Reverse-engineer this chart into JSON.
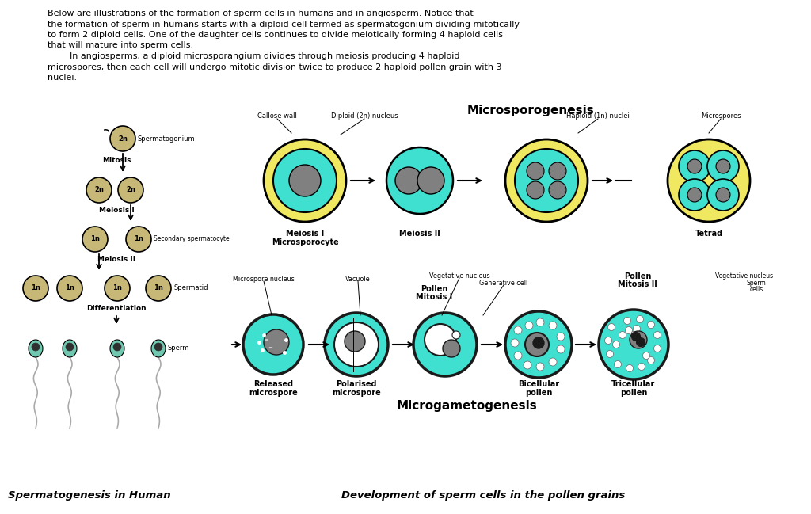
{
  "bg_color": "#ffffff",
  "tan": "#c8b878",
  "teal": "#40e0d0",
  "yellow": "#f0e860",
  "gray": "#808080",
  "dark_gray": "#606060",
  "white": "#ffffff",
  "dark": "#1a1a1a",
  "sperm_head_teal": "#70c8b0",
  "title_left": "Spermatogenesis in Human",
  "title_right": "Development of sperm cells in the pollen grains",
  "microsporogenesis": "Microsporogenesis",
  "microgametogenesis": "Microgametogenesis"
}
